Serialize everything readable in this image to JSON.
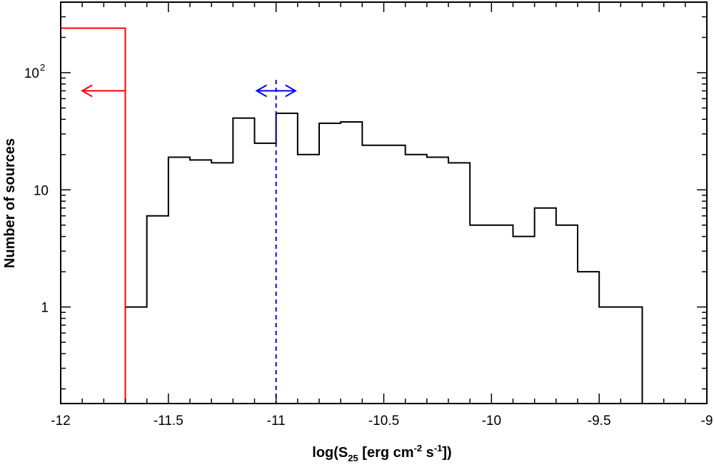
{
  "chart_data": {
    "type": "histogram",
    "xlabel": {
      "pre": "log(S",
      "sub": "25",
      "mid1": " [erg cm",
      "sup1": "-2",
      "mid2": " s",
      "sup2": "-1",
      "post": "])"
    },
    "ylabel": "Number of sources",
    "xlim": [
      -12,
      -9
    ],
    "ylim": [
      0.15,
      400
    ],
    "y_scale": "log",
    "grid": false,
    "x_ticks": [
      -12,
      -11.5,
      -11,
      -10.5,
      -10,
      -9.5,
      -9
    ],
    "x_tick_labels": [
      "-12",
      "-11.5",
      "-11",
      "-10.5",
      "-10",
      "-9.5",
      "-9"
    ],
    "y_ticks": [
      {
        "value": 1,
        "label": "1"
      },
      {
        "value": 10,
        "label": "10"
      },
      {
        "value": 100,
        "label": "10",
        "sup": "2"
      }
    ],
    "series": [
      {
        "color": "#000000",
        "bin_edges": [
          -11.7,
          -11.6,
          -11.5,
          -11.4,
          -11.3,
          -11.2,
          -11.1,
          -11.0,
          -10.9,
          -10.8,
          -10.7,
          -10.6,
          -10.5,
          -10.4,
          -10.3,
          -10.2,
          -10.1,
          -10.0,
          -9.9,
          -9.8,
          -9.7,
          -9.6,
          -9.5,
          -9.4,
          -9.3
        ],
        "counts": [
          1,
          6,
          19,
          18,
          17,
          41,
          25,
          45,
          20,
          37,
          38,
          24,
          24,
          20,
          19,
          17,
          5,
          5,
          4,
          7,
          5,
          2,
          1,
          1
        ]
      },
      {
        "color": "#ff0000",
        "bin_edges": [
          -12.0,
          -11.7
        ],
        "counts": [
          240
        ],
        "upper_limit_arrow": {
          "x_from": -11.7,
          "x_to": -11.9,
          "y": 70
        }
      }
    ],
    "annotations": [
      {
        "type": "vline",
        "x": -11.0,
        "style": "dashed",
        "color": "#0000ff"
      },
      {
        "type": "double_arrow",
        "x_from": -11.09,
        "x_to": -10.91,
        "y": 70,
        "color": "#0000ff"
      }
    ]
  }
}
